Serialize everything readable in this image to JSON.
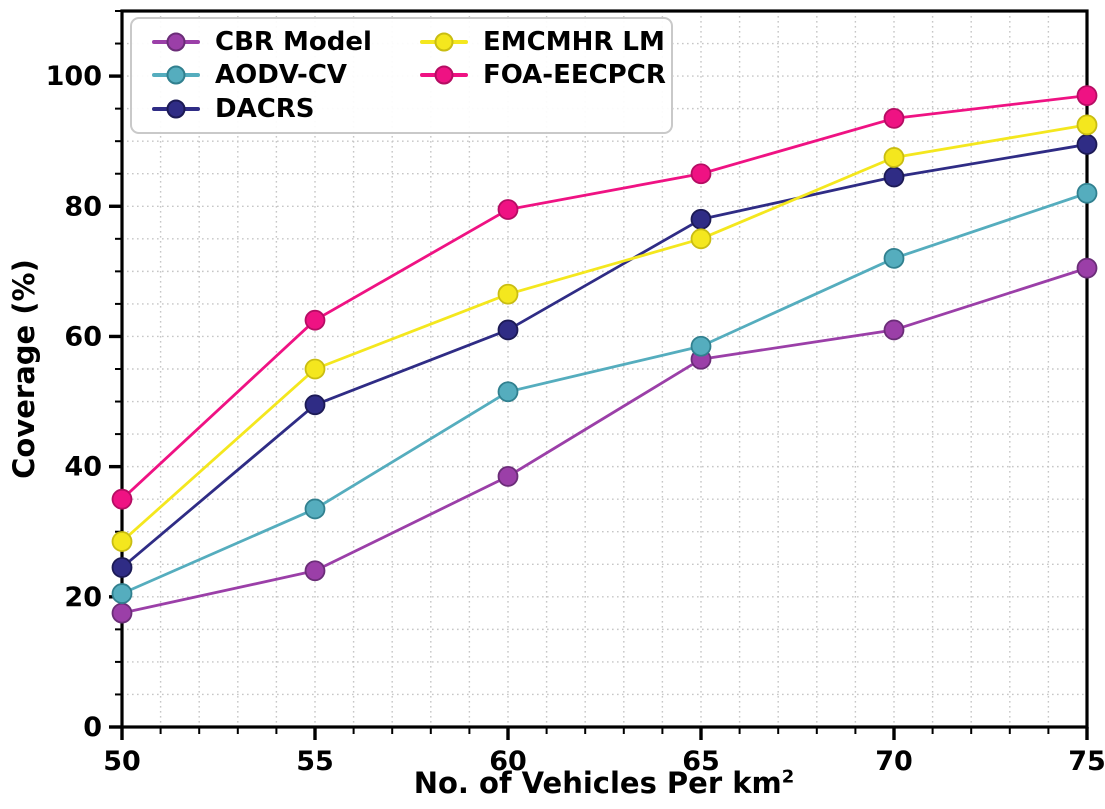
{
  "figure": {
    "background": "#ffffff",
    "text_color": "#000000",
    "grid_color": "#c6c6c6",
    "spine_color": "#000000",
    "legend_border_color": "#c9c9c9"
  },
  "chart_data": {
    "type": "line",
    "title": "",
    "xlabel": "No. of Vehicles Per km",
    "xlabel_superscript": "2",
    "ylabel": "Coverage (%)",
    "x": [
      50,
      55,
      60,
      65,
      70,
      75
    ],
    "xlim": [
      50,
      75
    ],
    "ylim": [
      0,
      110
    ],
    "x_major_ticks": [
      50,
      55,
      60,
      65,
      70,
      75
    ],
    "x_tick_labels": [
      "50",
      "55",
      "60",
      "65",
      "70",
      "75"
    ],
    "x_minor_step": 1,
    "y_major_ticks": [
      0,
      20,
      40,
      60,
      80,
      100
    ],
    "y_tick_labels": [
      "0",
      "20",
      "40",
      "60",
      "80",
      "100"
    ],
    "y_minor_step": 5,
    "grid": {
      "show": true,
      "style": "dotted",
      "x_step": 1,
      "y_step": 5
    },
    "legend": {
      "position": "upper-left",
      "columns": 2
    },
    "series": [
      {
        "name": "CBR Model",
        "color": "#9b3fa8",
        "edge_color": "#6b2d78",
        "values": [
          17.5,
          24,
          38.5,
          56.5,
          61,
          70.5
        ]
      },
      {
        "name": "AODV-CV",
        "color": "#55adbe",
        "edge_color": "#31808f",
        "values": [
          20.5,
          33.5,
          51.5,
          58.5,
          72,
          82
        ]
      },
      {
        "name": "DACRS",
        "color": "#2f2c85",
        "edge_color": "#1c1a55",
        "values": [
          24.5,
          49.5,
          61,
          78,
          84.5,
          89.5
        ]
      },
      {
        "name": "EMCMHR LM",
        "color": "#f4e71e",
        "edge_color": "#c9bd12",
        "values": [
          28.5,
          55,
          66.5,
          75,
          87.5,
          92.5
        ]
      },
      {
        "name": "FOA-EECPCR",
        "color": "#ef1283",
        "edge_color": "#b50d63",
        "values": [
          35,
          62.5,
          79.5,
          85,
          93.5,
          97
        ]
      }
    ]
  }
}
